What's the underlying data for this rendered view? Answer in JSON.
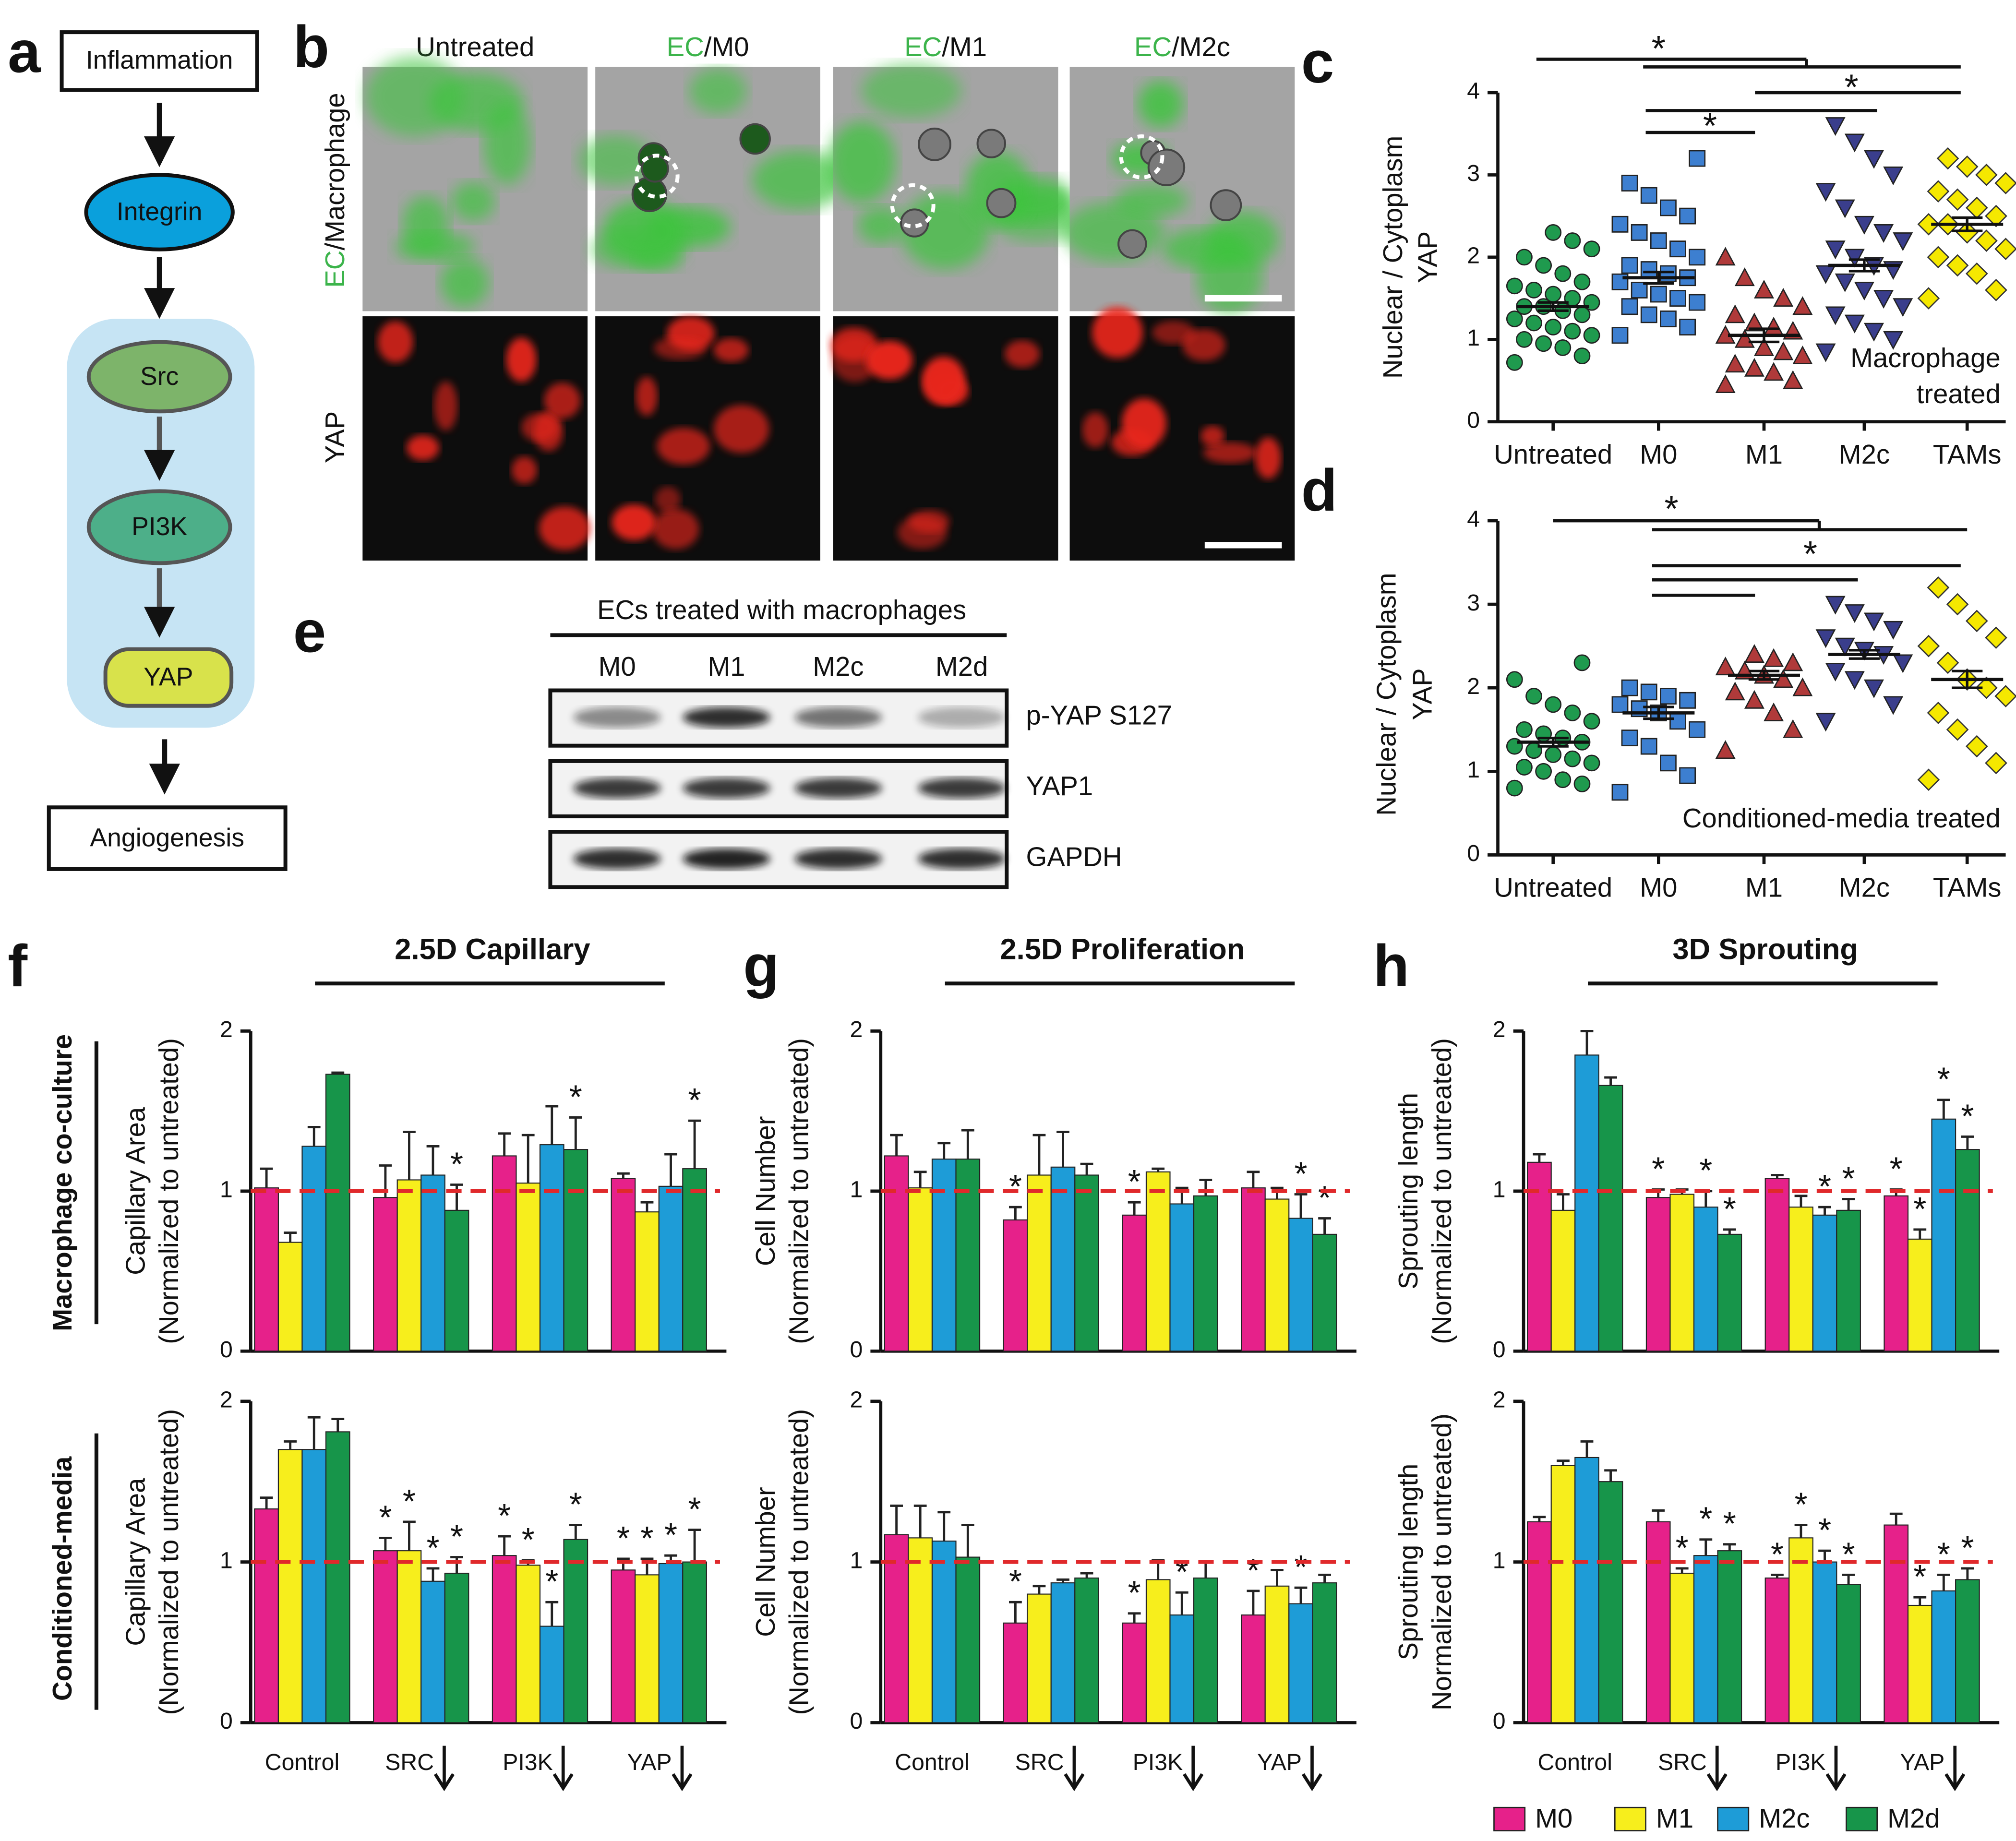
{
  "panel_labels": [
    "a",
    "b",
    "c",
    "d",
    "e",
    "f",
    "g",
    "h"
  ],
  "diagram": {
    "nodes": [
      "Inflammation",
      "Integrin",
      "Src",
      "PI3K",
      "YAP",
      "Angiogenesis"
    ]
  },
  "micrographs": {
    "columns": [
      {
        "text": "Untreated"
      },
      {
        "prefix": "EC",
        "text": "/M0"
      },
      {
        "prefix": "EC",
        "text": "/M1"
      },
      {
        "prefix": "EC",
        "text": "/M2c"
      }
    ],
    "rows": [
      {
        "prefix": "EC",
        "text": "/Macrophage"
      },
      {
        "text": "YAP"
      }
    ]
  },
  "blot": {
    "title": "ECs treated with macrophages",
    "lanes": [
      "M0",
      "M1",
      "M2c",
      "M2d"
    ],
    "rows": [
      "p-YAP S127",
      "YAP1",
      "GAPDH"
    ]
  },
  "row_labels": [
    "Macrophage co-culture",
    "Conditioned-media"
  ],
  "chart_data": [
    {
      "type": "dot",
      "ylabel": [
        "Nuclear / Cytoplasm",
        "YAP"
      ],
      "annotation": [
        "Macrophage",
        "treated"
      ],
      "categories": [
        "Untreated",
        "M0",
        "M1",
        "M2c",
        "TAMs"
      ],
      "colors": [
        "#1f9a4e",
        "#3d7fd0",
        "#b03a3a",
        "#3a3e8c",
        "#f5e800"
      ],
      "markers": [
        "circle",
        "square",
        "triangle-up",
        "triangle-down",
        "diamond"
      ],
      "points": [
        [
          0.72,
          0.8,
          0.9,
          0.95,
          1.0,
          1.05,
          1.1,
          1.15,
          1.2,
          1.25,
          1.3,
          1.35,
          1.4,
          1.4,
          1.45,
          1.5,
          1.55,
          1.6,
          1.65,
          1.7,
          1.8,
          1.9,
          2.0,
          2.1,
          2.2,
          2.3
        ],
        [
          1.05,
          1.15,
          1.25,
          1.3,
          1.4,
          1.45,
          1.5,
          1.55,
          1.6,
          1.7,
          1.75,
          1.8,
          1.85,
          1.9,
          2.0,
          2.1,
          2.2,
          2.3,
          2.4,
          2.5,
          2.6,
          2.75,
          2.9,
          3.2
        ],
        [
          0.45,
          0.5,
          0.6,
          0.65,
          0.7,
          0.8,
          0.85,
          0.9,
          1.0,
          1.05,
          1.1,
          1.15,
          1.2,
          1.3,
          1.4,
          1.5,
          1.6,
          1.75,
          2.0
        ],
        [
          0.85,
          1.0,
          1.1,
          1.2,
          1.3,
          1.4,
          1.5,
          1.6,
          1.7,
          1.8,
          1.85,
          1.9,
          2.0,
          2.1,
          2.2,
          2.3,
          2.4,
          2.6,
          2.8,
          3.0,
          3.2,
          3.4,
          3.6
        ],
        [
          1.5,
          1.6,
          1.8,
          1.9,
          2.0,
          2.1,
          2.2,
          2.3,
          2.4,
          2.4,
          2.5,
          2.6,
          2.7,
          2.8,
          2.9,
          3.0,
          3.1,
          3.2
        ]
      ],
      "means": [
        1.4,
        1.75,
        1.05,
        1.9,
        2.4
      ],
      "errors": [
        0.05,
        0.07,
        0.08,
        0.07,
        0.08
      ],
      "significance": [
        "*",
        "*",
        "*"
      ],
      "ylim": [
        0,
        4
      ],
      "yticks": [
        0,
        1,
        2,
        3,
        4
      ]
    },
    {
      "type": "dot",
      "ylabel": [
        "Nuclear / Cytoplasm",
        "YAP"
      ],
      "annotation": [
        "Conditioned-media treated"
      ],
      "categories": [
        "Untreated",
        "M0",
        "M1",
        "M2c",
        "TAMs"
      ],
      "colors": [
        "#1f9a4e",
        "#3d7fd0",
        "#b03a3a",
        "#3a3e8c",
        "#f5e800"
      ],
      "markers": [
        "circle",
        "square",
        "triangle-up",
        "triangle-down",
        "diamond"
      ],
      "points": [
        [
          0.8,
          0.85,
          0.9,
          1.0,
          1.05,
          1.1,
          1.15,
          1.2,
          1.25,
          1.3,
          1.35,
          1.4,
          1.45,
          1.5,
          1.6,
          1.7,
          1.8,
          1.9,
          2.1,
          2.3
        ],
        [
          0.75,
          0.95,
          1.1,
          1.3,
          1.4,
          1.5,
          1.6,
          1.7,
          1.75,
          1.8,
          1.85,
          1.9,
          1.95,
          2.0
        ],
        [
          1.25,
          1.5,
          1.7,
          1.85,
          1.95,
          2.0,
          2.1,
          2.15,
          2.2,
          2.25,
          2.3,
          2.35,
          2.4
        ],
        [
          1.6,
          1.8,
          2.0,
          2.1,
          2.2,
          2.3,
          2.4,
          2.45,
          2.5,
          2.6,
          2.7,
          2.8,
          2.9,
          3.0
        ],
        [
          0.9,
          1.1,
          1.3,
          1.5,
          1.7,
          1.9,
          2.0,
          2.1,
          2.3,
          2.5,
          2.6,
          2.8,
          3.0,
          3.2
        ]
      ],
      "means": [
        1.35,
        1.7,
        2.15,
        2.4,
        2.1
      ],
      "errors": [
        0.05,
        0.07,
        0.05,
        0.05,
        0.1
      ],
      "significance": [
        "*",
        "*"
      ],
      "ylim": [
        0,
        4
      ],
      "yticks": [
        0,
        1,
        2,
        3,
        4
      ]
    },
    {
      "type": "bar",
      "title": "2.5D Capillary",
      "ylabel": [
        "Capillary Area",
        "(Normalized to untreated)"
      ],
      "categories": [
        null,
        null,
        null,
        null
      ],
      "ylim": [
        0,
        2
      ],
      "yticks": [
        0,
        1,
        2
      ],
      "refline": 1,
      "series": [
        {
          "name": "M0",
          "color": "#e6218a",
          "values": [
            1.02,
            0.96,
            1.22,
            1.08
          ],
          "errors": [
            0.12,
            0.2,
            0.14,
            0.03
          ],
          "stars": [
            null,
            null,
            null,
            null
          ]
        },
        {
          "name": "M1",
          "color": "#f7ee1c",
          "values": [
            0.68,
            1.07,
            1.05,
            0.87
          ],
          "errors": [
            0.06,
            0.3,
            0.3,
            0.06
          ],
          "stars": [
            null,
            null,
            null,
            null
          ]
        },
        {
          "name": "M2c",
          "color": "#1e9cd7",
          "values": [
            1.28,
            1.1,
            1.29,
            1.03
          ],
          "errors": [
            0.12,
            0.18,
            0.24,
            0.2
          ],
          "stars": [
            null,
            null,
            null,
            null
          ]
        },
        {
          "name": "M2d",
          "color": "#17954a",
          "values": [
            1.73,
            0.88,
            1.26,
            1.14
          ],
          "errors": [
            0.01,
            0.16,
            0.2,
            0.3
          ],
          "stars": [
            null,
            "*",
            "*",
            "*"
          ]
        }
      ]
    },
    {
      "type": "bar",
      "ylabel": [
        "Capillary Area",
        "(Normalized to untreated)"
      ],
      "categories": [
        "Control",
        "SRC",
        "PI3K",
        "YAP"
      ],
      "ylim": [
        0,
        2
      ],
      "yticks": [
        0,
        1,
        2
      ],
      "refline": 1,
      "series": [
        {
          "name": "M0",
          "color": "#e6218a",
          "values": [
            1.33,
            1.07,
            1.04,
            0.95
          ],
          "errors": [
            0.07,
            0.08,
            0.12,
            0.07
          ],
          "stars": [
            null,
            "*",
            "*",
            "*"
          ]
        },
        {
          "name": "M1",
          "color": "#f7ee1c",
          "values": [
            1.7,
            1.07,
            0.98,
            0.92
          ],
          "errors": [
            0.05,
            0.18,
            0.03,
            0.1
          ],
          "stars": [
            null,
            "*",
            "*",
            "*"
          ]
        },
        {
          "name": "M2c",
          "color": "#1e9cd7",
          "values": [
            1.7,
            0.88,
            0.6,
            0.99
          ],
          "errors": [
            0.2,
            0.08,
            0.15,
            0.05
          ],
          "stars": [
            null,
            "*",
            "*",
            "*"
          ]
        },
        {
          "name": "M2d",
          "color": "#17954a",
          "values": [
            1.81,
            0.93,
            1.14,
            1.0
          ],
          "errors": [
            0.08,
            0.1,
            0.09,
            0.2
          ],
          "stars": [
            null,
            "*",
            "*",
            "*"
          ]
        }
      ]
    },
    {
      "type": "bar",
      "title": "2.5D Proliferation",
      "ylabel": [
        "Cell Number",
        "(Normalized to untreated)"
      ],
      "categories": [
        null,
        null,
        null,
        null
      ],
      "ylim": [
        0,
        2
      ],
      "yticks": [
        0,
        1,
        2
      ],
      "refline": 1,
      "series": [
        {
          "name": "M0",
          "color": "#e6218a",
          "values": [
            1.22,
            0.82,
            0.85,
            1.02
          ],
          "errors": [
            0.13,
            0.08,
            0.08,
            0.1
          ],
          "stars": [
            null,
            "*",
            "*",
            null
          ]
        },
        {
          "name": "M1",
          "color": "#f7ee1c",
          "values": [
            1.02,
            1.1,
            1.12,
            0.95
          ],
          "errors": [
            0.1,
            0.25,
            0.02,
            0.07
          ],
          "stars": [
            null,
            null,
            null,
            null
          ]
        },
        {
          "name": "M2c",
          "color": "#1e9cd7",
          "values": [
            1.2,
            1.15,
            0.92,
            0.83
          ],
          "errors": [
            0.1,
            0.22,
            0.1,
            0.15
          ],
          "stars": [
            null,
            null,
            null,
            "*"
          ]
        },
        {
          "name": "M2d",
          "color": "#17954a",
          "values": [
            1.2,
            1.1,
            0.97,
            0.73
          ],
          "errors": [
            0.18,
            0.07,
            0.1,
            0.1
          ],
          "stars": [
            null,
            null,
            null,
            "*"
          ]
        }
      ]
    },
    {
      "type": "bar",
      "ylabel": [
        "Cell Number",
        "(Normalized to untreated)"
      ],
      "categories": [
        "Control",
        "SRC",
        "PI3K",
        "YAP"
      ],
      "ylim": [
        0,
        2
      ],
      "yticks": [
        0,
        1,
        2
      ],
      "refline": 1,
      "series": [
        {
          "name": "M0",
          "color": "#e6218a",
          "values": [
            1.17,
            0.62,
            0.62,
            0.67
          ],
          "errors": [
            0.18,
            0.13,
            0.06,
            0.15
          ],
          "stars": [
            null,
            "*",
            "*",
            "*"
          ]
        },
        {
          "name": "M1",
          "color": "#f7ee1c",
          "values": [
            1.15,
            0.8,
            0.89,
            0.85
          ],
          "errors": [
            0.2,
            0.05,
            0.12,
            0.1
          ],
          "stars": [
            null,
            null,
            null,
            null
          ]
        },
        {
          "name": "M2c",
          "color": "#1e9cd7",
          "values": [
            1.13,
            0.87,
            0.67,
            0.74
          ],
          "errors": [
            0.18,
            0.02,
            0.14,
            0.1
          ],
          "stars": [
            null,
            null,
            "*",
            "*"
          ]
        },
        {
          "name": "M2d",
          "color": "#17954a",
          "values": [
            1.03,
            0.9,
            0.9,
            0.87
          ],
          "errors": [
            0.2,
            0.03,
            0.1,
            0.05
          ],
          "stars": [
            null,
            null,
            null,
            null
          ]
        }
      ]
    },
    {
      "type": "bar",
      "title": "3D Sprouting",
      "ylabel": [
        "Sprouting length",
        "(Normalized to untreated)"
      ],
      "categories": [
        null,
        null,
        null,
        null
      ],
      "ylim": [
        0,
        2
      ],
      "yticks": [
        0,
        1,
        2
      ],
      "refline": 1,
      "series": [
        {
          "name": "M0",
          "color": "#e6218a",
          "values": [
            1.18,
            0.96,
            1.08,
            0.97
          ],
          "errors": [
            0.05,
            0.05,
            0.02,
            0.04
          ],
          "stars": [
            null,
            "*",
            null,
            "*"
          ]
        },
        {
          "name": "M1",
          "color": "#f7ee1c",
          "values": [
            0.88,
            0.98,
            0.9,
            0.7
          ],
          "errors": [
            0.1,
            0.03,
            0.07,
            0.06
          ],
          "stars": [
            null,
            null,
            null,
            "*"
          ]
        },
        {
          "name": "M2c",
          "color": "#1e9cd7",
          "values": [
            1.85,
            0.9,
            0.85,
            1.45
          ],
          "errors": [
            0.15,
            0.1,
            0.05,
            0.12
          ],
          "stars": [
            null,
            "*",
            "*",
            "*"
          ]
        },
        {
          "name": "M2d",
          "color": "#17954a",
          "values": [
            1.66,
            0.73,
            0.88,
            1.26
          ],
          "errors": [
            0.05,
            0.03,
            0.07,
            0.08
          ],
          "stars": [
            null,
            "*",
            "*",
            "*"
          ]
        }
      ]
    },
    {
      "type": "bar",
      "ylabel": [
        "Sprouting length",
        "Normalized to untreated)"
      ],
      "categories": [
        "Control",
        "SRC",
        "PI3K",
        "YAP"
      ],
      "ylim": [
        0,
        2
      ],
      "yticks": [
        0,
        1,
        2
      ],
      "refline": 1,
      "series": [
        {
          "name": "M0",
          "color": "#e6218a",
          "values": [
            1.25,
            1.25,
            0.9,
            1.23
          ],
          "errors": [
            0.03,
            0.07,
            0.02,
            0.07
          ],
          "stars": [
            null,
            null,
            "*",
            null
          ]
        },
        {
          "name": "M1",
          "color": "#f7ee1c",
          "values": [
            1.6,
            0.93,
            1.15,
            0.73
          ],
          "errors": [
            0.03,
            0.03,
            0.08,
            0.05
          ],
          "stars": [
            null,
            "*",
            "*",
            "*"
          ]
        },
        {
          "name": "M2c",
          "color": "#1e9cd7",
          "values": [
            1.65,
            1.04,
            1.0,
            0.82
          ],
          "errors": [
            0.1,
            0.1,
            0.07,
            0.1
          ],
          "stars": [
            null,
            "*",
            "*",
            "*"
          ]
        },
        {
          "name": "M2d",
          "color": "#17954a",
          "values": [
            1.5,
            1.07,
            0.86,
            0.89
          ],
          "errors": [
            0.07,
            0.04,
            0.06,
            0.07
          ],
          "stars": [
            null,
            "*",
            "*",
            "*"
          ]
        }
      ]
    }
  ]
}
